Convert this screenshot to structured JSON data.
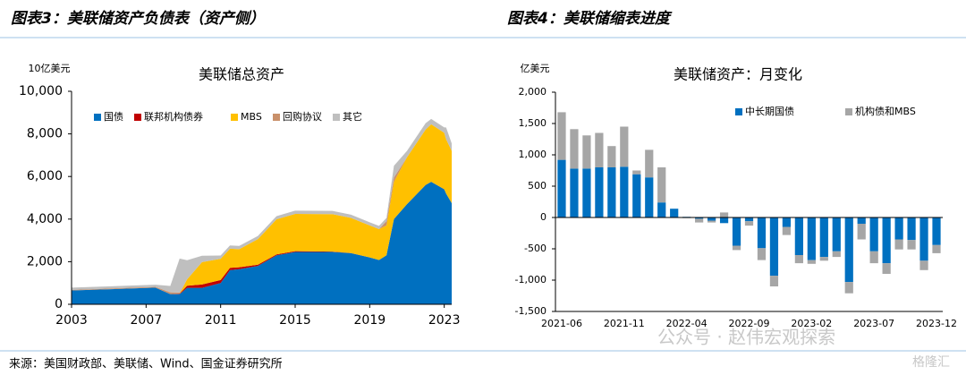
{
  "header": {
    "left": "图表3：美联储资产负债表（资产侧）",
    "right": "图表4：美联储缩表进度"
  },
  "source": "来源：美国财政部、美联储、Wind、国金证券研究所",
  "watermark": {
    "text": "公众号 · 赵伟宏观探索",
    "logo": "格隆汇"
  },
  "chart_data": [
    {
      "type": "area",
      "stacked": true,
      "title": "美联储总资产",
      "y_label": "10亿美元",
      "x": [
        2003,
        2007.5,
        2008.3,
        2008.8,
        2009.2,
        2010,
        2011,
        2011.5,
        2012,
        2013,
        2014,
        2015,
        2017,
        2018,
        2019,
        2019.5,
        2019.9,
        2020.3,
        2021,
        2022,
        2022.3,
        2023,
        2023.1,
        2023.4
      ],
      "series": [
        {
          "name": "国债",
          "color": "#0070c0",
          "values": [
            650,
            780,
            480,
            480,
            770,
            770,
            1000,
            1600,
            1650,
            1800,
            2300,
            2460,
            2460,
            2400,
            2200,
            2080,
            2300,
            4000,
            4700,
            5600,
            5750,
            5400,
            5200,
            4750
          ]
        },
        {
          "name": "联邦机构债券",
          "color": "#c00000",
          "values": [
            0,
            0,
            0,
            20,
            100,
            160,
            140,
            110,
            90,
            60,
            40,
            35,
            15,
            5,
            2,
            2,
            2,
            2,
            2,
            2,
            2,
            2,
            2,
            2
          ]
        },
        {
          "name": "MBS",
          "color": "#ffc000",
          "values": [
            0,
            0,
            0,
            0,
            300,
            1050,
            1000,
            900,
            850,
            1200,
            1650,
            1750,
            1760,
            1650,
            1500,
            1450,
            1400,
            1750,
            2200,
            2600,
            2700,
            2650,
            2550,
            2450
          ]
        },
        {
          "name": "回购协议",
          "color": "#c9906a",
          "values": [
            30,
            40,
            80,
            50,
            0,
            0,
            0,
            0,
            0,
            0,
            0,
            0,
            0,
            0,
            0,
            0,
            200,
            200,
            0,
            0,
            0,
            0,
            0,
            0
          ]
        },
        {
          "name": "其它",
          "color": "#bfbfbf",
          "values": [
            100,
            100,
            300,
            1600,
            900,
            300,
            150,
            150,
            150,
            150,
            150,
            150,
            150,
            150,
            150,
            150,
            150,
            550,
            300,
            300,
            250,
            250,
            550,
            350
          ]
        }
      ],
      "xlim": [
        2003,
        2023.4
      ],
      "xticks": [
        2003,
        2007,
        2011,
        2015,
        2019,
        2023
      ],
      "ylim": [
        0,
        10000
      ],
      "yticks": [
        0,
        {
          "value": 2000,
          "label": "2,000"
        },
        {
          "value": 4000,
          "label": "4,000"
        },
        {
          "value": 6000,
          "label": "6,000"
        },
        {
          "value": 8000,
          "label": "8,000"
        },
        {
          "value": 10000,
          "label": "10,000"
        }
      ]
    },
    {
      "type": "bar",
      "stacked": true,
      "title": "美联储资产：月变化",
      "y_label": "亿美元",
      "categories": [
        "2021-06",
        null,
        null,
        null,
        null,
        "2021-11",
        null,
        null,
        null,
        null,
        "2022-04",
        null,
        null,
        null,
        null,
        "2022-09",
        null,
        null,
        null,
        null,
        "2023-02",
        null,
        null,
        null,
        null,
        "2023-07",
        null,
        null,
        null,
        null,
        "2023-12"
      ],
      "series": [
        {
          "name": "中长期国债",
          "color": "#0070c0",
          "values": [
            920,
            780,
            780,
            800,
            800,
            810,
            690,
            640,
            240,
            140,
            10,
            -20,
            -50,
            -90,
            -450,
            -60,
            -490,
            -930,
            -150,
            -600,
            -680,
            -630,
            -540,
            -1030,
            -100,
            -540,
            -730,
            -350,
            -360,
            -690,
            -440
          ]
        },
        {
          "name": "机构债和MBS",
          "color": "#a6a6a6",
          "values": [
            760,
            630,
            530,
            550,
            340,
            640,
            60,
            440,
            560,
            0,
            -10,
            -60,
            -30,
            80,
            -70,
            -70,
            -190,
            -170,
            -130,
            -130,
            -60,
            -60,
            -90,
            -180,
            -250,
            -190,
            -170,
            -160,
            -150,
            -150,
            -130
          ]
        }
      ],
      "ylim": [
        -1500,
        2000
      ],
      "yticks": [
        {
          "value": -1500,
          "label": "-1,500"
        },
        {
          "value": -1000,
          "label": "-1,000"
        },
        -500,
        0,
        500,
        {
          "value": 1000,
          "label": "1,000"
        },
        {
          "value": 1500,
          "label": "1,500"
        },
        {
          "value": 2000,
          "label": "2,000"
        }
      ]
    }
  ]
}
